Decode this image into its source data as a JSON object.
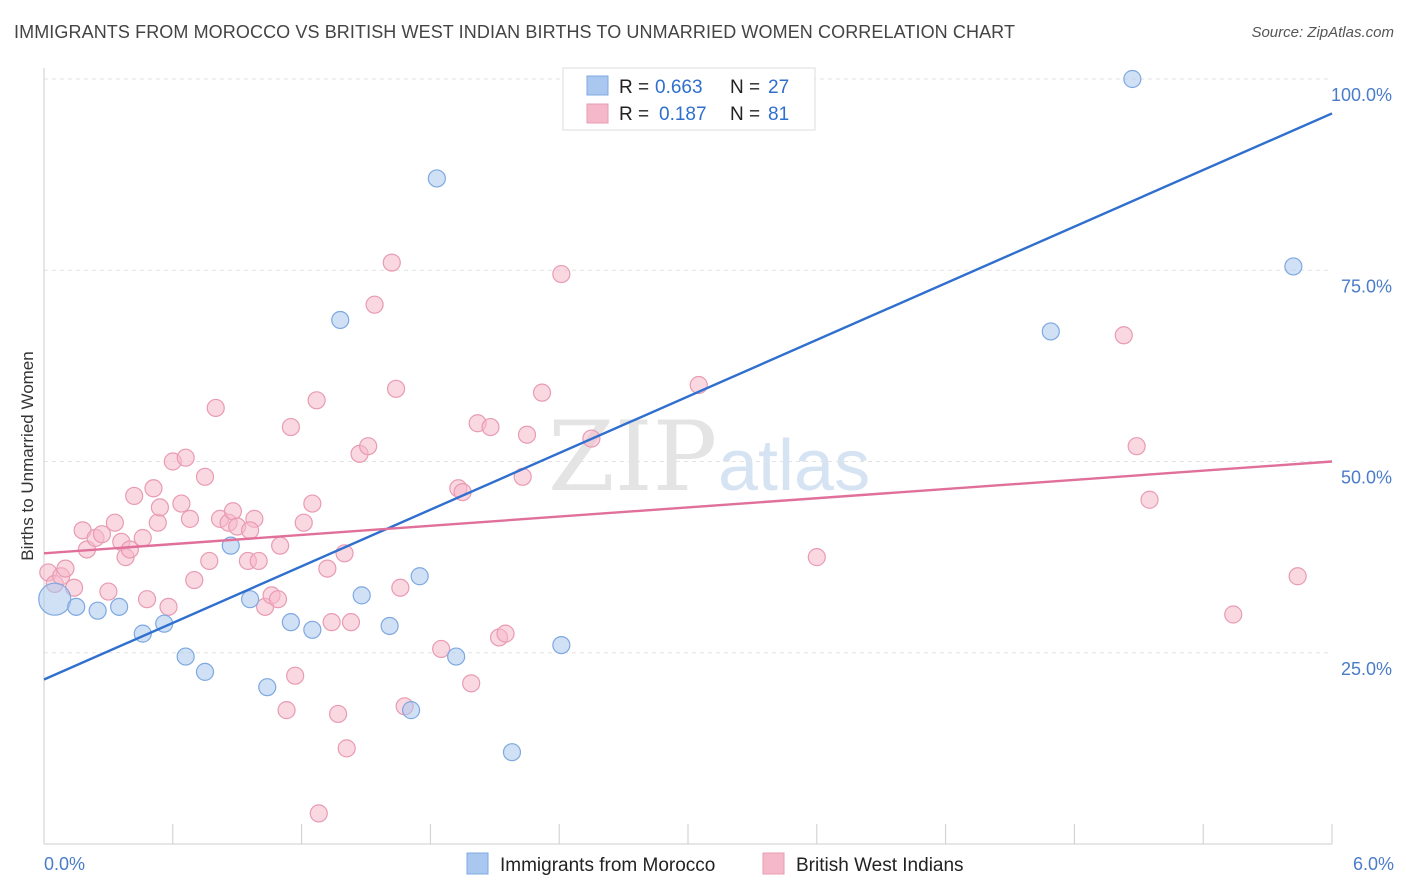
{
  "header": {
    "title": "IMMIGRANTS FROM MOROCCO VS BRITISH WEST INDIAN BIRTHS TO UNMARRIED WOMEN CORRELATION CHART",
    "source": "Source: ZipAtlas.com"
  },
  "watermark": {
    "zip": "ZIP",
    "atlas": "atlas"
  },
  "legend": {
    "rows": [
      {
        "r_label": "R =",
        "r_value": "0.663",
        "n_label": "N =",
        "n_value": "27",
        "color": "#aac8ef"
      },
      {
        "r_label": "R =",
        "r_value": "0.187",
        "n_label": "N =",
        "n_value": "81",
        "color": "#f5b8cb"
      }
    ]
  },
  "chart_data": {
    "type": "scatter",
    "title": "IMMIGRANTS FROM MOROCCO VS BRITISH WEST INDIAN BIRTHS TO UNMARRIED WOMEN CORRELATION CHART",
    "xlabel": "",
    "ylabel": "Births to Unmarried Women",
    "xlim": [
      0,
      6
    ],
    "ylim": [
      0,
      100
    ],
    "x_tick_labels": [
      "0.0%",
      "6.0%"
    ],
    "y_tick_labels": [
      "25.0%",
      "50.0%",
      "75.0%",
      "100.0%"
    ],
    "y_tick_values": [
      25,
      50,
      75,
      100
    ],
    "grid": true,
    "legend_position": "top-center",
    "series": [
      {
        "name": "Immigrants from Morocco",
        "color": "#aac8ef",
        "stroke": "#7ea8e0",
        "line_color": "#2f6fce",
        "trend": [
          [
            0,
            21.5
          ],
          [
            6,
            95.5
          ]
        ],
        "points": [
          [
            0.05,
            32.0
          ],
          [
            0.15,
            31.0
          ],
          [
            0.25,
            30.5
          ],
          [
            0.35,
            31.0
          ],
          [
            0.46,
            27.5
          ],
          [
            0.56,
            28.8
          ],
          [
            0.66,
            24.5
          ],
          [
            0.75,
            22.5
          ],
          [
            0.87,
            39.0
          ],
          [
            0.96,
            32.0
          ],
          [
            1.04,
            20.5
          ],
          [
            1.15,
            29.0
          ],
          [
            1.25,
            28.0
          ],
          [
            1.38,
            68.5
          ],
          [
            1.48,
            32.5
          ],
          [
            1.61,
            28.5
          ],
          [
            1.71,
            17.5
          ],
          [
            1.75,
            35.0
          ],
          [
            1.83,
            87.0
          ],
          [
            1.92,
            24.5
          ],
          [
            2.18,
            12.0
          ],
          [
            2.41,
            26.0
          ],
          [
            2.67,
            100.0
          ],
          [
            3.37,
            100.0
          ],
          [
            4.69,
            67.0
          ],
          [
            5.07,
            100.0
          ],
          [
            5.82,
            75.5
          ]
        ]
      },
      {
        "name": "British West Indians",
        "color": "#f5b8cb",
        "stroke": "#e89bb3",
        "line_color": "#e0709a",
        "trend": [
          [
            0,
            38.0
          ],
          [
            6,
            50.0
          ]
        ],
        "points": [
          [
            0.02,
            35.5
          ],
          [
            0.05,
            34.0
          ],
          [
            0.08,
            35.0
          ],
          [
            0.1,
            36.0
          ],
          [
            0.14,
            33.5
          ],
          [
            0.18,
            41.0
          ],
          [
            0.2,
            38.5
          ],
          [
            0.24,
            40.0
          ],
          [
            0.27,
            40.5
          ],
          [
            0.3,
            33.0
          ],
          [
            0.33,
            42.0
          ],
          [
            0.36,
            39.5
          ],
          [
            0.38,
            37.5
          ],
          [
            0.4,
            38.5
          ],
          [
            0.42,
            45.5
          ],
          [
            0.46,
            40.0
          ],
          [
            0.48,
            32.0
          ],
          [
            0.51,
            46.5
          ],
          [
            0.53,
            42.0
          ],
          [
            0.54,
            44.0
          ],
          [
            0.58,
            31.0
          ],
          [
            0.6,
            50.0
          ],
          [
            0.64,
            44.5
          ],
          [
            0.66,
            50.5
          ],
          [
            0.68,
            42.5
          ],
          [
            0.7,
            34.5
          ],
          [
            0.75,
            48.0
          ],
          [
            0.77,
            37.0
          ],
          [
            0.8,
            57.0
          ],
          [
            0.82,
            42.5
          ],
          [
            0.86,
            42.0
          ],
          [
            0.88,
            43.5
          ],
          [
            0.9,
            41.5
          ],
          [
            0.95,
            37.0
          ],
          [
            0.98,
            42.5
          ],
          [
            1.0,
            37.0
          ],
          [
            1.03,
            31.0
          ],
          [
            1.06,
            32.5
          ],
          [
            1.09,
            32.0
          ],
          [
            1.1,
            39.0
          ],
          [
            1.13,
            17.5
          ],
          [
            1.15,
            54.5
          ],
          [
            1.17,
            22.0
          ],
          [
            1.21,
            42.0
          ],
          [
            1.25,
            44.5
          ],
          [
            1.27,
            58.0
          ],
          [
            1.32,
            36.0
          ],
          [
            1.34,
            29.0
          ],
          [
            1.37,
            17.0
          ],
          [
            1.4,
            38.0
          ],
          [
            1.41,
            12.5
          ],
          [
            1.43,
            29.0
          ],
          [
            1.47,
            51.0
          ],
          [
            1.51,
            52.0
          ],
          [
            1.54,
            70.5
          ],
          [
            1.62,
            76.0
          ],
          [
            1.64,
            59.5
          ],
          [
            1.66,
            33.5
          ],
          [
            1.68,
            18.0
          ],
          [
            1.85,
            25.5
          ],
          [
            1.93,
            46.5
          ],
          [
            1.95,
            46.0
          ],
          [
            1.99,
            21.0
          ],
          [
            2.02,
            55.0
          ],
          [
            2.08,
            54.5
          ],
          [
            2.12,
            27.0
          ],
          [
            2.15,
            27.5
          ],
          [
            2.23,
            48.0
          ],
          [
            2.25,
            53.5
          ],
          [
            2.32,
            59.0
          ],
          [
            2.41,
            74.5
          ],
          [
            2.55,
            53.0
          ],
          [
            3.05,
            60.0
          ],
          [
            3.6,
            37.5
          ],
          [
            1.28,
            4.0
          ],
          [
            5.03,
            66.5
          ],
          [
            5.09,
            52.0
          ],
          [
            5.15,
            45.0
          ],
          [
            5.54,
            30.0
          ],
          [
            5.84,
            35.0
          ],
          [
            0.96,
            41.0
          ]
        ]
      }
    ]
  }
}
